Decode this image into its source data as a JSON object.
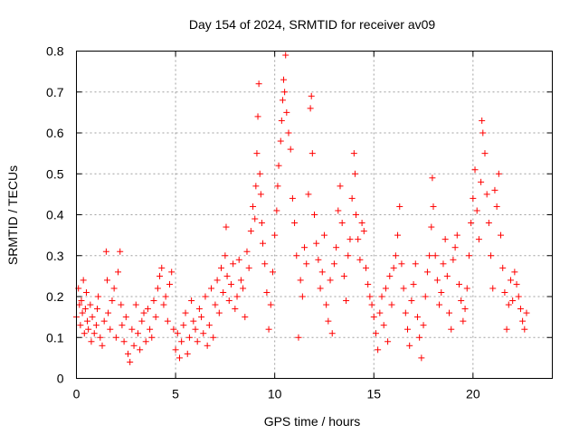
{
  "chart_data": {
    "type": "scatter",
    "title": "Day 154 of 2024, SRMTID for receiver av09",
    "xlabel": "GPS time / hours",
    "ylabel": "SRMTID / TECUs",
    "xlim": [
      0,
      24
    ],
    "ylim": [
      0,
      0.8
    ],
    "x_ticks": [
      0,
      5,
      10,
      15,
      20
    ],
    "x_tick_labels": [
      "0",
      "5",
      "10",
      "15",
      "20"
    ],
    "y_ticks": [
      0,
      0.1,
      0.2,
      0.3,
      0.4,
      0.5,
      0.6,
      0.7,
      0.8
    ],
    "y_tick_labels": [
      "0",
      "0.1",
      "0.2",
      "0.3",
      "0.4",
      "0.5",
      "0.6",
      "0.7",
      "0.8"
    ],
    "grid": true,
    "marker": "+",
    "color": "#ff0000",
    "series": [
      {
        "name": "SRMTID",
        "points": [
          [
            0.0,
            0.15
          ],
          [
            0.1,
            0.22
          ],
          [
            0.15,
            0.18
          ],
          [
            0.2,
            0.13
          ],
          [
            0.25,
            0.19
          ],
          [
            0.3,
            0.16
          ],
          [
            0.35,
            0.24
          ],
          [
            0.4,
            0.11
          ],
          [
            0.45,
            0.17
          ],
          [
            0.5,
            0.21
          ],
          [
            0.55,
            0.14
          ],
          [
            0.6,
            0.12
          ],
          [
            0.7,
            0.18
          ],
          [
            0.75,
            0.09
          ],
          [
            0.8,
            0.15
          ],
          [
            0.9,
            0.11
          ],
          [
            1.0,
            0.13
          ],
          [
            1.05,
            0.17
          ],
          [
            1.1,
            0.2
          ],
          [
            1.2,
            0.1
          ],
          [
            1.3,
            0.08
          ],
          [
            1.4,
            0.14
          ],
          [
            1.5,
            0.31
          ],
          [
            1.55,
            0.24
          ],
          [
            1.6,
            0.16
          ],
          [
            1.7,
            0.12
          ],
          [
            1.8,
            0.19
          ],
          [
            1.9,
            0.22
          ],
          [
            2.0,
            0.1
          ],
          [
            2.1,
            0.26
          ],
          [
            2.2,
            0.31
          ],
          [
            2.25,
            0.18
          ],
          [
            2.3,
            0.13
          ],
          [
            2.4,
            0.09
          ],
          [
            2.5,
            0.15
          ],
          [
            2.6,
            0.06
          ],
          [
            2.7,
            0.04
          ],
          [
            2.8,
            0.12
          ],
          [
            2.9,
            0.08
          ],
          [
            3.0,
            0.18
          ],
          [
            3.1,
            0.11
          ],
          [
            3.2,
            0.07
          ],
          [
            3.3,
            0.14
          ],
          [
            3.4,
            0.16
          ],
          [
            3.5,
            0.09
          ],
          [
            3.6,
            0.17
          ],
          [
            3.7,
            0.12
          ],
          [
            3.8,
            0.1
          ],
          [
            3.9,
            0.19
          ],
          [
            4.0,
            0.15
          ],
          [
            4.1,
            0.22
          ],
          [
            4.2,
            0.25
          ],
          [
            4.3,
            0.27
          ],
          [
            4.4,
            0.18
          ],
          [
            4.5,
            0.2
          ],
          [
            4.6,
            0.14
          ],
          [
            4.7,
            0.23
          ],
          [
            4.8,
            0.26
          ],
          [
            4.9,
            0.12
          ],
          [
            5.0,
            0.07
          ],
          [
            5.1,
            0.11
          ],
          [
            5.2,
            0.05
          ],
          [
            5.3,
            0.09
          ],
          [
            5.4,
            0.13
          ],
          [
            5.5,
            0.16
          ],
          [
            5.6,
            0.06
          ],
          [
            5.7,
            0.1
          ],
          [
            5.8,
            0.19
          ],
          [
            5.9,
            0.14
          ],
          [
            6.0,
            0.12
          ],
          [
            6.1,
            0.09
          ],
          [
            6.2,
            0.17
          ],
          [
            6.3,
            0.15
          ],
          [
            6.4,
            0.11
          ],
          [
            6.5,
            0.2
          ],
          [
            6.6,
            0.08
          ],
          [
            6.7,
            0.13
          ],
          [
            6.8,
            0.22
          ],
          [
            6.9,
            0.1
          ],
          [
            7.0,
            0.18
          ],
          [
            7.1,
            0.24
          ],
          [
            7.2,
            0.16
          ],
          [
            7.3,
            0.27
          ],
          [
            7.4,
            0.21
          ],
          [
            7.5,
            0.3
          ],
          [
            7.55,
            0.37
          ],
          [
            7.6,
            0.25
          ],
          [
            7.7,
            0.19
          ],
          [
            7.8,
            0.23
          ],
          [
            7.9,
            0.28
          ],
          [
            8.0,
            0.17
          ],
          [
            8.1,
            0.2
          ],
          [
            8.2,
            0.29
          ],
          [
            8.3,
            0.24
          ],
          [
            8.4,
            0.22
          ],
          [
            8.5,
            0.15
          ],
          [
            8.6,
            0.31
          ],
          [
            8.7,
            0.27
          ],
          [
            8.8,
            0.36
          ],
          [
            8.9,
            0.42
          ],
          [
            9.0,
            0.39
          ],
          [
            9.05,
            0.47
          ],
          [
            9.1,
            0.55
          ],
          [
            9.15,
            0.64
          ],
          [
            9.2,
            0.72
          ],
          [
            9.25,
            0.5
          ],
          [
            9.3,
            0.45
          ],
          [
            9.35,
            0.38
          ],
          [
            9.4,
            0.33
          ],
          [
            9.5,
            0.28
          ],
          [
            9.6,
            0.21
          ],
          [
            9.7,
            0.12
          ],
          [
            9.8,
            0.18
          ],
          [
            9.9,
            0.26
          ],
          [
            10.0,
            0.35
          ],
          [
            10.1,
            0.41
          ],
          [
            10.15,
            0.47
          ],
          [
            10.2,
            0.52
          ],
          [
            10.3,
            0.58
          ],
          [
            10.35,
            0.63
          ],
          [
            10.4,
            0.68
          ],
          [
            10.45,
            0.73
          ],
          [
            10.5,
            0.7
          ],
          [
            10.55,
            0.79
          ],
          [
            10.6,
            0.65
          ],
          [
            10.7,
            0.6
          ],
          [
            10.8,
            0.56
          ],
          [
            10.9,
            0.44
          ],
          [
            11.0,
            0.38
          ],
          [
            11.1,
            0.3
          ],
          [
            11.2,
            0.1
          ],
          [
            11.3,
            0.24
          ],
          [
            11.4,
            0.2
          ],
          [
            11.5,
            0.32
          ],
          [
            11.6,
            0.28
          ],
          [
            11.7,
            0.45
          ],
          [
            11.8,
            0.66
          ],
          [
            11.85,
            0.69
          ],
          [
            11.9,
            0.55
          ],
          [
            12.0,
            0.4
          ],
          [
            12.1,
            0.33
          ],
          [
            12.2,
            0.29
          ],
          [
            12.3,
            0.22
          ],
          [
            12.4,
            0.26
          ],
          [
            12.5,
            0.35
          ],
          [
            12.6,
            0.18
          ],
          [
            12.7,
            0.14
          ],
          [
            12.8,
            0.24
          ],
          [
            12.9,
            0.11
          ],
          [
            13.0,
            0.28
          ],
          [
            13.1,
            0.32
          ],
          [
            13.2,
            0.41
          ],
          [
            13.3,
            0.47
          ],
          [
            13.4,
            0.38
          ],
          [
            13.5,
            0.25
          ],
          [
            13.6,
            0.19
          ],
          [
            13.7,
            0.3
          ],
          [
            13.8,
            0.34
          ],
          [
            13.9,
            0.44
          ],
          [
            14.0,
            0.55
          ],
          [
            14.05,
            0.5
          ],
          [
            14.1,
            0.4
          ],
          [
            14.2,
            0.34
          ],
          [
            14.3,
            0.29
          ],
          [
            14.4,
            0.38
          ],
          [
            14.5,
            0.36
          ],
          [
            14.6,
            0.27
          ],
          [
            14.7,
            0.23
          ],
          [
            14.8,
            0.2
          ],
          [
            14.9,
            0.18
          ],
          [
            15.0,
            0.15
          ],
          [
            15.1,
            0.11
          ],
          [
            15.2,
            0.07
          ],
          [
            15.3,
            0.16
          ],
          [
            15.4,
            0.2
          ],
          [
            15.5,
            0.13
          ],
          [
            15.6,
            0.22
          ],
          [
            15.7,
            0.09
          ],
          [
            15.8,
            0.25
          ],
          [
            15.9,
            0.18
          ],
          [
            16.0,
            0.27
          ],
          [
            16.1,
            0.3
          ],
          [
            16.2,
            0.35
          ],
          [
            16.3,
            0.42
          ],
          [
            16.4,
            0.28
          ],
          [
            16.5,
            0.22
          ],
          [
            16.6,
            0.16
          ],
          [
            16.7,
            0.12
          ],
          [
            16.8,
            0.08
          ],
          [
            16.9,
            0.19
          ],
          [
            17.0,
            0.23
          ],
          [
            17.1,
            0.28
          ],
          [
            17.2,
            0.15
          ],
          [
            17.3,
            0.1
          ],
          [
            17.4,
            0.05
          ],
          [
            17.5,
            0.13
          ],
          [
            17.6,
            0.2
          ],
          [
            17.7,
            0.26
          ],
          [
            17.8,
            0.3
          ],
          [
            17.9,
            0.37
          ],
          [
            17.95,
            0.49
          ],
          [
            18.0,
            0.42
          ],
          [
            18.1,
            0.3
          ],
          [
            18.2,
            0.24
          ],
          [
            18.3,
            0.18
          ],
          [
            18.4,
            0.21
          ],
          [
            18.5,
            0.28
          ],
          [
            18.6,
            0.34
          ],
          [
            18.7,
            0.25
          ],
          [
            18.8,
            0.16
          ],
          [
            18.9,
            0.12
          ],
          [
            19.0,
            0.29
          ],
          [
            19.1,
            0.32
          ],
          [
            19.2,
            0.35
          ],
          [
            19.3,
            0.23
          ],
          [
            19.4,
            0.19
          ],
          [
            19.5,
            0.14
          ],
          [
            19.6,
            0.17
          ],
          [
            19.7,
            0.22
          ],
          [
            19.8,
            0.3
          ],
          [
            19.9,
            0.38
          ],
          [
            20.0,
            0.44
          ],
          [
            20.1,
            0.51
          ],
          [
            20.2,
            0.41
          ],
          [
            20.3,
            0.34
          ],
          [
            20.4,
            0.48
          ],
          [
            20.45,
            0.63
          ],
          [
            20.5,
            0.6
          ],
          [
            20.6,
            0.55
          ],
          [
            20.7,
            0.45
          ],
          [
            20.8,
            0.38
          ],
          [
            20.9,
            0.3
          ],
          [
            21.0,
            0.22
          ],
          [
            21.1,
            0.46
          ],
          [
            21.2,
            0.42
          ],
          [
            21.3,
            0.5
          ],
          [
            21.4,
            0.35
          ],
          [
            21.5,
            0.27
          ],
          [
            21.6,
            0.21
          ],
          [
            21.7,
            0.12
          ],
          [
            21.8,
            0.18
          ],
          [
            21.9,
            0.24
          ],
          [
            22.0,
            0.19
          ],
          [
            22.1,
            0.26
          ],
          [
            22.2,
            0.23
          ],
          [
            22.3,
            0.2
          ],
          [
            22.4,
            0.17
          ],
          [
            22.5,
            0.14
          ],
          [
            22.6,
            0.12
          ],
          [
            22.7,
            0.16
          ]
        ]
      }
    ]
  }
}
